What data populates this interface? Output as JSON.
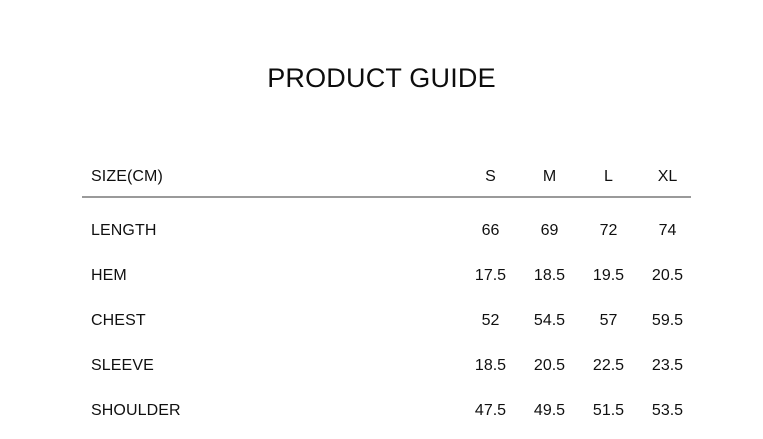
{
  "page": {
    "title": "PRODUCT GUIDE",
    "background_color": "#ffffff",
    "text_color": "#0e0e0e",
    "divider_color": "#9a9a9a"
  },
  "size_table": {
    "header": {
      "label": "SIZE(CM)",
      "columns": [
        "S",
        "M",
        "L",
        "XL"
      ]
    },
    "rows": [
      {
        "label": "LENGTH",
        "values": [
          "66",
          "69",
          "72",
          "74"
        ]
      },
      {
        "label": "HEM",
        "values": [
          "17.5",
          "18.5",
          "19.5",
          "20.5"
        ]
      },
      {
        "label": "CHEST",
        "values": [
          "52",
          "54.5",
          "57",
          "59.5"
        ]
      },
      {
        "label": "SLEEVE",
        "values": [
          "18.5",
          "20.5",
          "22.5",
          "23.5"
        ]
      },
      {
        "label": "SHOULDER",
        "values": [
          "47.5",
          "49.5",
          "51.5",
          "53.5"
        ]
      }
    ]
  }
}
